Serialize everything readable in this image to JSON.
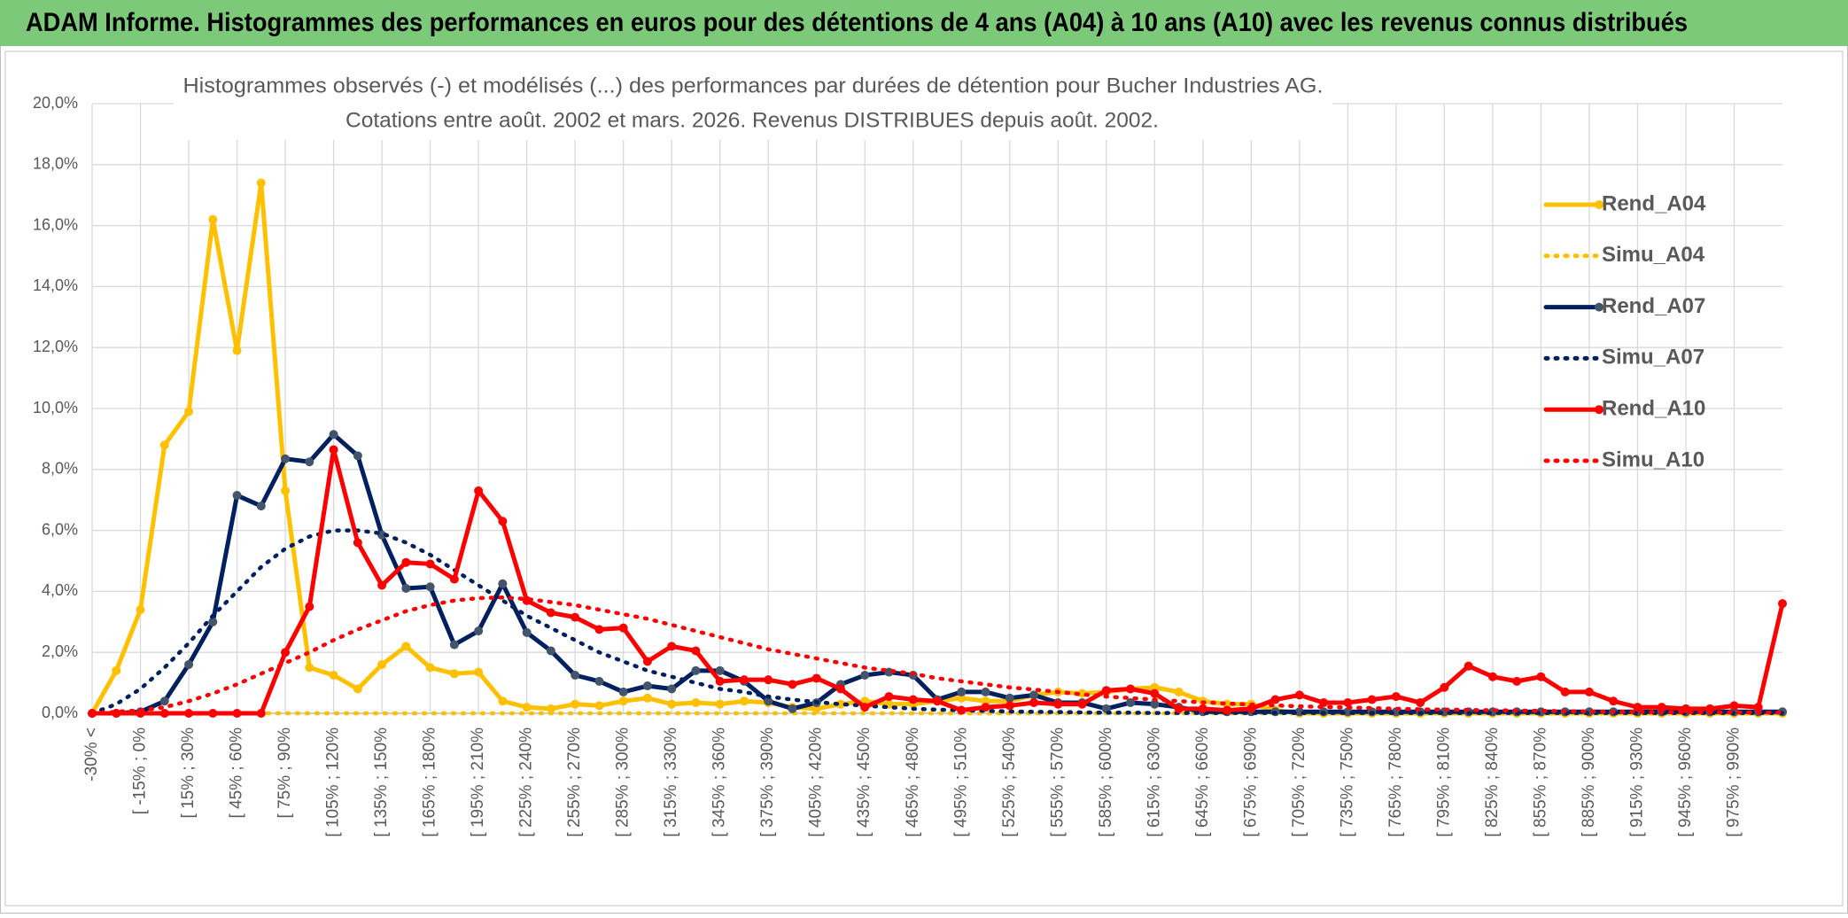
{
  "chart_data": {
    "type": "line",
    "title": "ADAM Informe. Histogrammes des performances en euros pour des détentions de 4 ans (A04) à 10 ans (A10) avec les revenus connus distribués",
    "subtitle": [
      "Histogrammes observés (-) et modélisés (...) des performances par durées de détention pour Bucher Industries AG.",
      "Cotations entre août. 2002 et mars. 2026. Revenus DISTRIBUES depuis août. 2002."
    ],
    "categories": [
      "-30% <",
      null,
      "[ -15% ; 0%",
      null,
      "[ 15% ; 30%",
      null,
      "[ 45% ; 60%",
      null,
      "[ 75% ; 90%",
      null,
      "[ 105% ; 120%",
      null,
      "[ 135% ; 150%",
      null,
      "[ 165% ; 180%",
      null,
      "[ 195% ; 210%",
      null,
      "[ 225% ; 240%",
      null,
      "[ 255% ; 270%",
      null,
      "[ 285% ; 300%",
      null,
      "[ 315% ; 330%",
      null,
      "[ 345% ; 360%",
      null,
      "[ 375% ; 390%",
      null,
      "[ 405% ; 420%",
      null,
      "[ 435% ; 450%",
      null,
      "[ 465% ; 480%",
      null,
      "[ 495% ; 510%",
      null,
      "[ 525% ; 540%",
      null,
      "[ 555% ; 570%",
      null,
      "[ 585% ; 600%",
      null,
      "[ 615% ; 630%",
      null,
      "[ 645% ; 660%",
      null,
      "[ 675% ; 690%",
      null,
      "[ 705% ; 720%",
      null,
      "[ 735% ; 750%",
      null,
      "[ 765% ; 780%",
      null,
      "[ 795% ; 810%",
      null,
      "[ 825% ; 840%",
      null,
      "[ 855% ; 870%",
      null,
      "[ 885% ; 900%",
      null,
      "[ 915% ; 930%",
      null,
      "[ 945% ; 960%",
      null,
      "[ 975% ; 990%",
      null,
      null
    ],
    "series": [
      {
        "name": "Rend_A04",
        "color": "#FFC000",
        "line_style": "solid",
        "markers": true,
        "values": [
          0,
          1.4,
          3.4,
          8.8,
          9.9,
          16.2,
          11.9,
          17.4,
          7.3,
          1.5,
          1.25,
          0.8,
          1.6,
          2.2,
          1.5,
          1.3,
          1.35,
          0.4,
          0.2,
          0.15,
          0.3,
          0.25,
          0.4,
          0.5,
          0.3,
          0.35,
          0.3,
          0.4,
          0.35,
          0.2,
          0.15,
          0.3,
          0.4,
          0.3,
          0.3,
          0.4,
          0.5,
          0.4,
          0.4,
          0.6,
          0.7,
          0.65,
          0.7,
          0.8,
          0.85,
          0.7,
          0.4,
          0.3,
          0.3,
          0.1,
          0,
          0,
          0,
          0,
          0,
          0,
          0,
          0,
          0,
          0,
          0,
          0,
          0,
          0,
          0,
          0,
          0,
          0,
          0,
          0,
          0
        ]
      },
      {
        "name": "Simu_A04",
        "color": "#FFC000",
        "line_style": "dotted",
        "markers": false,
        "values": [
          0,
          0,
          0,
          0,
          0,
          0,
          0,
          0,
          0,
          0,
          0,
          0,
          0,
          0,
          0,
          0,
          0,
          0,
          0,
          0,
          0,
          0,
          0,
          0,
          0,
          0,
          0,
          0,
          0,
          0,
          0,
          0,
          0,
          0,
          0,
          0,
          0,
          0,
          0,
          0,
          0,
          0,
          0,
          0,
          0,
          0,
          0,
          0,
          0,
          0,
          0,
          0,
          0,
          0,
          0,
          0,
          0,
          0,
          0,
          0,
          0,
          0,
          0,
          0,
          0,
          0,
          0,
          0,
          0,
          0,
          0
        ]
      },
      {
        "name": "Rend_A07",
        "color": "#002060",
        "line_style": "solid",
        "markers": true,
        "values": [
          0,
          0,
          0.05,
          0.4,
          1.6,
          3.0,
          7.15,
          6.8,
          8.35,
          8.25,
          9.15,
          8.45,
          5.85,
          4.1,
          4.15,
          2.25,
          2.7,
          4.25,
          2.65,
          2.05,
          1.25,
          1.05,
          0.7,
          0.9,
          0.8,
          1.4,
          1.4,
          1.05,
          0.4,
          0.15,
          0.35,
          0.95,
          1.25,
          1.35,
          1.25,
          0.45,
          0.7,
          0.7,
          0.5,
          0.6,
          0.35,
          0.35,
          0.15,
          0.35,
          0.3,
          0.2,
          0.05,
          0.05,
          0.05,
          0.05,
          0.05,
          0.05,
          0.05,
          0.05,
          0.05,
          0.05,
          0.05,
          0.05,
          0.05,
          0.05,
          0.05,
          0.05,
          0.05,
          0.05,
          0.05,
          0.05,
          0.05,
          0.05,
          0.05,
          0.05,
          0.05
        ]
      },
      {
        "name": "Simu_A07",
        "color": "#002060",
        "line_style": "dotted",
        "markers": false,
        "values": [
          0,
          0.3,
          0.8,
          1.5,
          2.3,
          3.2,
          4.0,
          4.8,
          5.4,
          5.8,
          6.0,
          6.0,
          5.9,
          5.6,
          5.2,
          4.7,
          4.2,
          3.7,
          3.2,
          2.8,
          2.4,
          2.0,
          1.7,
          1.4,
          1.2,
          1.0,
          0.8,
          0.7,
          0.55,
          0.45,
          0.37,
          0.3,
          0.25,
          0.2,
          0.15,
          0.12,
          0.1,
          0.08,
          0.06,
          0.05,
          0.04,
          0.03,
          0.02,
          0.02,
          0.01,
          0.01,
          0.01,
          0.01,
          0.01,
          0.01,
          0.01,
          0.01,
          0.01,
          0.01,
          0.01,
          0.01,
          0.01,
          0.01,
          0.01,
          0.01,
          0.01,
          0.01,
          0.01,
          0.01,
          0.01,
          0.01,
          0.01,
          0.01,
          0.01,
          0.01,
          0.01
        ]
      },
      {
        "name": "Rend_A10",
        "color": "#FF0000",
        "line_style": "solid",
        "markers": true,
        "values": [
          0,
          0,
          0,
          0,
          0,
          0,
          0,
          0,
          2.0,
          3.5,
          8.65,
          5.6,
          4.2,
          4.95,
          4.9,
          4.4,
          7.3,
          6.3,
          3.7,
          3.3,
          3.15,
          2.75,
          2.8,
          1.7,
          2.2,
          2.05,
          1.05,
          1.1,
          1.1,
          0.95,
          1.15,
          0.8,
          0.2,
          0.55,
          0.45,
          0.4,
          0.1,
          0.2,
          0.25,
          0.35,
          0.3,
          0.3,
          0.75,
          0.8,
          0.65,
          0.15,
          0.15,
          0.1,
          0.15,
          0.45,
          0.6,
          0.35,
          0.35,
          0.45,
          0.55,
          0.35,
          0.85,
          1.55,
          1.2,
          1.05,
          1.2,
          0.7,
          0.7,
          0.4,
          0.2,
          0.2,
          0.15,
          0.15,
          0.25,
          0.2,
          3.6
        ]
      },
      {
        "name": "Simu_A10",
        "color": "#FF0000",
        "line_style": "dotted",
        "markers": false,
        "values": [
          0,
          0.05,
          0.1,
          0.2,
          0.4,
          0.65,
          0.95,
          1.3,
          1.65,
          2.0,
          2.4,
          2.75,
          3.05,
          3.35,
          3.55,
          3.7,
          3.78,
          3.8,
          3.75,
          3.65,
          3.55,
          3.4,
          3.25,
          3.1,
          2.9,
          2.7,
          2.5,
          2.3,
          2.1,
          1.95,
          1.8,
          1.65,
          1.5,
          1.4,
          1.3,
          1.15,
          1.05,
          0.95,
          0.85,
          0.78,
          0.7,
          0.62,
          0.55,
          0.5,
          0.45,
          0.4,
          0.36,
          0.32,
          0.29,
          0.26,
          0.23,
          0.21,
          0.19,
          0.17,
          0.15,
          0.13,
          0.12,
          0.11,
          0.1,
          0.09,
          0.08,
          0.07,
          0.06,
          0.05,
          0.05,
          0.04,
          0.04,
          0.03,
          0.03,
          0.03,
          0.02
        ]
      }
    ],
    "ylim": [
      0,
      20
    ],
    "yticks": [
      {
        "value": 0,
        "label": "0,0%"
      },
      {
        "value": 2,
        "label": "2,0%"
      },
      {
        "value": 4,
        "label": "4,0%"
      },
      {
        "value": 6,
        "label": "6,0%"
      },
      {
        "value": 8,
        "label": "8,0%"
      },
      {
        "value": 10,
        "label": "10,0%"
      },
      {
        "value": 12,
        "label": "12,0%"
      },
      {
        "value": 14,
        "label": "14,0%"
      },
      {
        "value": 16,
        "label": "16,0%"
      },
      {
        "value": 18,
        "label": "18,0%"
      },
      {
        "value": 20,
        "label": "20,0%"
      }
    ],
    "grid": true,
    "legend": "right"
  }
}
